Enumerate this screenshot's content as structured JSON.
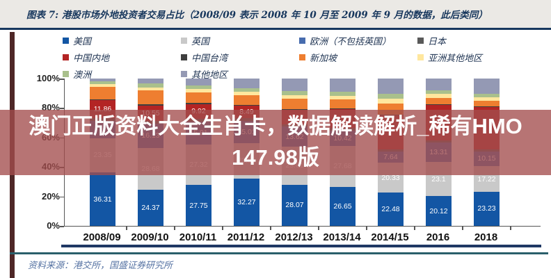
{
  "title": "图表 7: 港股市场外地投资者交易占比（2008/09 表示 2008 年 10 月至 2009 年 9 月的数据，此后类同）",
  "watermark": {
    "line1": "澳门正版资料大全生肖卡，数据解读解析_稀有HMO",
    "line2": "147.98版"
  },
  "footer": {
    "source": "资料来源：港交所，国盛证券研究所"
  },
  "accent_colors": {
    "title_bar": "#17375e",
    "left_accent": "#4e2727",
    "banner_overlay": "rgba(163,77,77,0.78)",
    "bottom_navy_line": "#1f3864",
    "bottom_teal_line": "#2a5f6b"
  },
  "chart_data": {
    "type": "bar",
    "stacked": true,
    "grid": false,
    "legend_position": "top",
    "ylim": [
      0,
      100
    ],
    "y_ticks": [
      "100%",
      "80%",
      "60%",
      "40%",
      "20%",
      "0%"
    ],
    "categories": [
      "2008/09",
      "2009/10",
      "2010/11",
      "2011/12",
      "2012/13",
      "2013/14",
      "2014/15",
      "2016",
      "2018"
    ],
    "series": [
      {
        "name": "美国",
        "color": "#1356a4",
        "values": [
          36.31,
          24.37,
          27.75,
          32.27,
          28.07,
          26.65,
          22.48,
          20.12,
          23.23
        ],
        "labels": [
          "36.31",
          "24.37",
          "27.75",
          "32.27",
          "28.07",
          "26.65",
          "22.48",
          "20.12",
          "23.23"
        ]
      },
      {
        "name": "英国",
        "color": "#c9c9c9",
        "values": [
          23.35,
          28.68,
          27.32,
          23.95,
          25.61,
          27.68,
          20.33,
          23.1,
          17.22
        ],
        "labels": [
          "23.35",
          "28.68",
          "27.32",
          "23.95",
          "25.61",
          "27.68",
          "20.33",
          "23.1",
          "17.22"
        ]
      },
      {
        "name": "欧洲（不包括英国）",
        "color": "#476cae",
        "values": [
          11.49,
          16.13,
          15.91,
          15.01,
          13.62,
          10.42,
          7.64,
          13.31,
          10.15
        ],
        "labels": [
          null,
          "16.13",
          "15.91",
          "15.01",
          "13.62",
          "10.42",
          "7.64",
          "13.31",
          "10.15"
        ]
      },
      {
        "name": "日本",
        "color": "#595959",
        "values": [
          2.2,
          2.0,
          1.9,
          1.8,
          1.8,
          1.6,
          1.6,
          1.5,
          1.4
        ],
        "labels": [
          null,
          null,
          null,
          null,
          null,
          null,
          null,
          null,
          null
        ]
      },
      {
        "name": "中国内地",
        "color": "#b32424",
        "values": [
          11.86,
          10.55,
          9.92,
          8.49,
          9.6,
          12.9,
          22.9,
          24.0,
          28.6
        ],
        "labels": [
          "11.86",
          "10.55",
          "9.92",
          "8.49",
          null,
          null,
          null,
          null,
          null
        ]
      },
      {
        "name": "中国台湾",
        "color": "#3f3f3f",
        "values": [
          0.7,
          0.7,
          0.7,
          0.6,
          0.6,
          0.6,
          0.5,
          0.5,
          0.4
        ],
        "labels": [
          null,
          null,
          null,
          null,
          null,
          null,
          null,
          null,
          null
        ]
      },
      {
        "name": "新加坡",
        "color": "#ee7e30",
        "values": [
          8.6,
          9.6,
          7.2,
          6.8,
          6.9,
          5.8,
          7.6,
          4.5,
          3.8
        ],
        "labels": [
          null,
          null,
          null,
          null,
          null,
          null,
          null,
          null,
          null
        ]
      },
      {
        "name": "亚洲其他地区",
        "color": "#ffe79e",
        "values": [
          1.6,
          2.0,
          2.2,
          2.2,
          2.6,
          2.6,
          3.4,
          2.6,
          2.6
        ],
        "labels": [
          null,
          null,
          null,
          null,
          null,
          null,
          null,
          null,
          null
        ]
      },
      {
        "name": "澳洲",
        "color": "#a9c08c",
        "values": [
          2.2,
          2.5,
          2.6,
          2.5,
          2.8,
          2.6,
          3.0,
          2.2,
          2.2
        ],
        "labels": [
          null,
          null,
          null,
          null,
          null,
          null,
          null,
          null,
          null
        ]
      },
      {
        "name": "其他地区",
        "color": "#9499b4",
        "values": [
          1.69,
          3.47,
          4.5,
          6.38,
          8.4,
          9.15,
          10.55,
          8.17,
          10.4
        ],
        "labels": [
          null,
          null,
          null,
          null,
          null,
          null,
          null,
          null,
          null
        ]
      }
    ]
  }
}
